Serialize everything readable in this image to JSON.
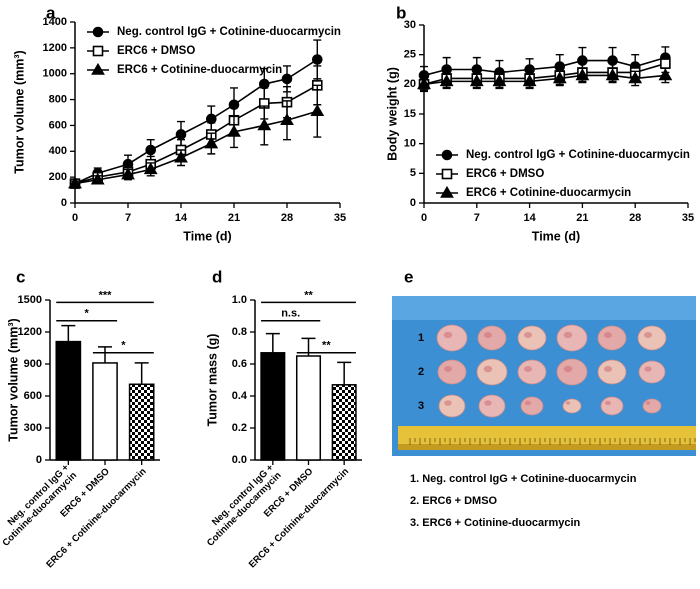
{
  "chart_data": [
    {
      "type": "line",
      "panel_label": "a",
      "xlabel": "Time (d)",
      "ylabel": "Tumor volume (mm³)",
      "x": [
        0,
        3,
        7,
        10,
        14,
        18,
        21,
        25,
        28,
        32
      ],
      "series": [
        {
          "name": "Neg. control IgG + Cotinine-duocarmycin",
          "color": "#000000",
          "marker": "circle",
          "values": [
            150,
            230,
            300,
            410,
            530,
            650,
            760,
            920,
            960,
            1110
          ],
          "errors": [
            30,
            40,
            70,
            80,
            100,
            100,
            130,
            120,
            100,
            150
          ]
        },
        {
          "name": "ERC6 + DMSO",
          "color": "#000000",
          "marker": "square",
          "values": [
            150,
            200,
            240,
            300,
            410,
            530,
            640,
            770,
            780,
            910
          ],
          "errors": [
            20,
            30,
            50,
            60,
            80,
            90,
            100,
            120,
            120,
            150
          ]
        },
        {
          "name": "ERC6 + Cotinine-duocarmycin",
          "color": "#000000",
          "marker": "triangle",
          "values": [
            150,
            180,
            220,
            260,
            350,
            460,
            550,
            600,
            640,
            710
          ],
          "errors": [
            20,
            30,
            40,
            50,
            60,
            80,
            120,
            150,
            150,
            200
          ]
        }
      ],
      "xlim": [
        0,
        35
      ],
      "xticks": [
        0,
        7,
        14,
        21,
        28,
        35
      ],
      "ylim": [
        0,
        1400
      ],
      "yticks": [
        0,
        200,
        400,
        600,
        800,
        1000,
        1200,
        1400
      ],
      "legend": "upper left"
    },
    {
      "type": "line",
      "panel_label": "b",
      "xlabel": "Time (d)",
      "ylabel": "Body weight (g)",
      "x": [
        0,
        3,
        7,
        10,
        14,
        18,
        21,
        25,
        28,
        32
      ],
      "series": [
        {
          "name": "Neg. control IgG + Cotinine-duocarmycin",
          "color": "#000000",
          "marker": "circle",
          "values": [
            21.5,
            22.5,
            22.5,
            22,
            22.5,
            23,
            24,
            24,
            23,
            24.5
          ],
          "errors": [
            1.5,
            2,
            2,
            2,
            1.8,
            2,
            2.2,
            2.2,
            2,
            1.8
          ]
        },
        {
          "name": "ERC6 + DMSO",
          "color": "#000000",
          "marker": "square",
          "values": [
            20,
            21,
            21,
            21,
            21,
            21.5,
            22,
            22,
            22,
            23.5
          ],
          "errors": [
            1.2,
            1.5,
            1.5,
            1.5,
            1.5,
            1.5,
            1.5,
            1.5,
            1.5,
            1.5
          ]
        },
        {
          "name": "ERC6 + Cotinine-duocarmycin",
          "color": "#000000",
          "marker": "triangle",
          "values": [
            20,
            20.5,
            20.5,
            20.5,
            20.5,
            21,
            21.5,
            21.5,
            21,
            21.5
          ],
          "errors": [
            1,
            1.2,
            1.2,
            1.2,
            1.2,
            1.2,
            1.2,
            1.2,
            1.2,
            1.2
          ]
        }
      ],
      "xlim": [
        0,
        35
      ],
      "xticks": [
        0,
        7,
        14,
        21,
        28,
        35
      ],
      "ylim": [
        0,
        30
      ],
      "yticks": [
        0,
        5,
        10,
        15,
        20,
        25,
        30
      ],
      "legend": "lower left"
    },
    {
      "type": "bar",
      "panel_label": "c",
      "ylabel": "Tumor volume (mm³)",
      "categories": [
        [
          "Neg. control IgG +",
          "Cotinine-duocarmycin"
        ],
        [
          "ERC6 + DMSO"
        ],
        [
          "ERC6 + Cotinine-duocarmycin"
        ]
      ],
      "values": [
        1110,
        910,
        710
      ],
      "errors": [
        150,
        150,
        200
      ],
      "colors": [
        "#000000",
        "#ffffff",
        "#000000"
      ],
      "fills": [
        "solid",
        "solid",
        "checker"
      ],
      "annotations": [
        "***",
        "*",
        "*"
      ],
      "ylim": [
        0,
        1500
      ],
      "yticks": [
        0,
        300,
        600,
        900,
        1200,
        1500
      ]
    },
    {
      "type": "bar",
      "panel_label": "d",
      "ylabel": "Tumor mass (g)",
      "categories": [
        [
          "Neg. control IgG +",
          "Cotinine-duocarmycin"
        ],
        [
          "ERC6 + DMSO"
        ],
        [
          "ERC6 + Cotinine-duocarmycin"
        ]
      ],
      "values": [
        0.67,
        0.65,
        0.47
      ],
      "errors": [
        0.12,
        0.11,
        0.14
      ],
      "colors": [
        "#000000",
        "#ffffff",
        "#000000"
      ],
      "fills": [
        "solid",
        "solid",
        "checker"
      ],
      "annotations": [
        "**",
        "n.s.",
        "**"
      ],
      "ylim": [
        0,
        1
      ],
      "yticks": [
        {
          "value": 0,
          "label": "0.0"
        },
        0.2,
        0.4,
        0.6,
        0.8,
        {
          "value": 1,
          "label": "1.0"
        }
      ]
    }
  ],
  "photo": {
    "panel_label": "e",
    "row_labels": [
      "1",
      "2",
      "3"
    ],
    "legend": [
      "1. Neg. control IgG + Cotinine-duocarmycin",
      "2. ERC6 + DMSO",
      "3. ERC6 + Cotinine-duocarmycin"
    ]
  }
}
